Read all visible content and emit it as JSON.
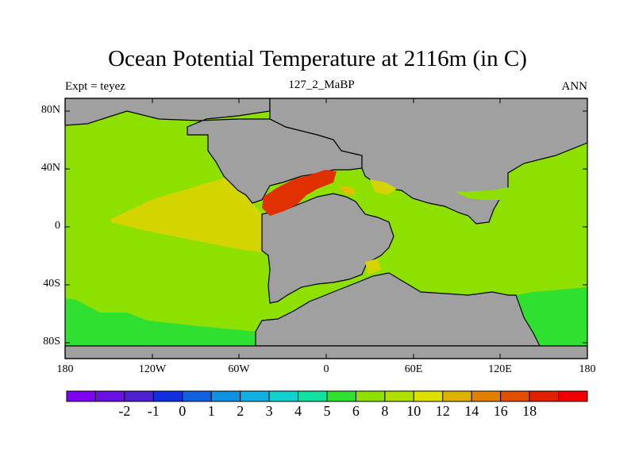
{
  "title": "Ocean Potential Temperature at 2116m (in C)",
  "experiment_label": "Expt = teyez",
  "time_period": "127_2_MaBP",
  "season": "ANN",
  "map": {
    "land_color": "#a0a0a0",
    "lat_range": [
      -90,
      90
    ],
    "lon_range": [
      -180,
      180
    ],
    "lat_ticks": [
      "80N",
      "40N",
      "0",
      "40S",
      "80S"
    ],
    "lon_ticks": [
      "180",
      "120W",
      "60W",
      "0",
      "60E",
      "120E",
      "180"
    ]
  },
  "colorbar": {
    "colors": [
      "#8000f0",
      "#6a10e0",
      "#5020d0",
      "#1030e0",
      "#1060e0",
      "#1090e0",
      "#10b0e0",
      "#10d0d0",
      "#10e0a0",
      "#30e030",
      "#8ee000",
      "#b0e000",
      "#e0e000",
      "#e0b000",
      "#e08000",
      "#e05000",
      "#e02000",
      "#f00000"
    ],
    "labels": [
      "-2",
      "-1",
      "0",
      "1",
      "2",
      "3",
      "4",
      "5",
      "6",
      "8",
      "10",
      "12",
      "14",
      "16",
      "18"
    ]
  },
  "field_colors": {
    "ocean_main": "#8ee000",
    "ocean_warm": "#d4d400",
    "ocean_cold": "#30e030",
    "hot_1": "#e03000",
    "hot_2": "#e05000",
    "warm_1": "#e0c000"
  }
}
